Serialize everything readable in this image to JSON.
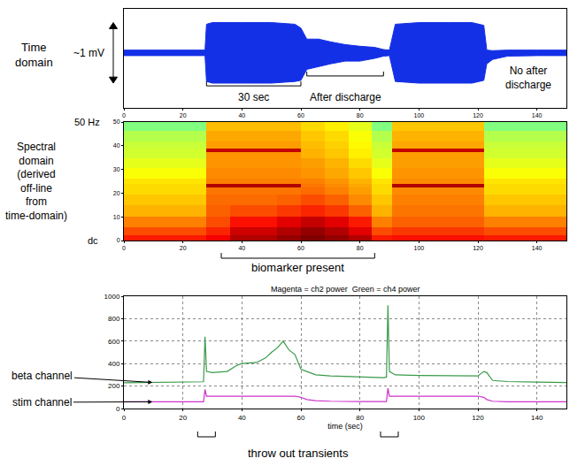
{
  "chart_data": [
    {
      "type": "area",
      "color": "#1430e6",
      "x": [
        0,
        10,
        20,
        27.5,
        28,
        30,
        40,
        50,
        58,
        60,
        62,
        66,
        70,
        75,
        80,
        85,
        88,
        90,
        92,
        100,
        110,
        118,
        122,
        123,
        125,
        130,
        140,
        150
      ],
      "values": [
        [
          -0.05,
          0.05
        ],
        [
          -0.05,
          0.05
        ],
        [
          -0.05,
          0.05
        ],
        [
          -0.05,
          0.05
        ],
        [
          -0.52,
          0.52
        ],
        [
          -0.55,
          0.55
        ],
        [
          -0.55,
          0.55
        ],
        [
          -0.55,
          0.55
        ],
        [
          -0.52,
          0.52
        ],
        [
          -0.5,
          0.45
        ],
        [
          -0.3,
          0.25
        ],
        [
          -0.25,
          0.25
        ],
        [
          -0.2,
          0.2
        ],
        [
          -0.15,
          0.15
        ],
        [
          -0.15,
          0.12
        ],
        [
          -0.1,
          0.1
        ],
        [
          -0.06,
          0.06
        ],
        [
          -0.05,
          0.05
        ],
        [
          -0.52,
          0.52
        ],
        [
          -0.55,
          0.55
        ],
        [
          -0.55,
          0.55
        ],
        [
          -0.55,
          0.55
        ],
        [
          -0.5,
          0.5
        ],
        [
          -0.2,
          0.05
        ],
        [
          -0.12,
          0.04
        ],
        [
          -0.06,
          0.05
        ],
        [
          -0.05,
          0.05
        ],
        [
          -0.05,
          0.05
        ]
      ],
      "xlim": [
        0,
        150
      ],
      "ylim": [
        -1,
        0.8
      ],
      "xticks": [
        0,
        20,
        40,
        60,
        80,
        100,
        120,
        140
      ],
      "tick_labels": "x",
      "annotations": [
        "Time domain",
        "~1 mV",
        "30 sec",
        "After discharge",
        "No after discharge"
      ]
    },
    {
      "type": "heatmap",
      "x": [
        5,
        15,
        24,
        32,
        40,
        48,
        56,
        64,
        72,
        80.5,
        87.5,
        94,
        102,
        110,
        118,
        126,
        135,
        145
      ],
      "y": [
        1,
        3.5,
        7.5,
        12.5,
        17.5,
        21.5,
        23,
        24.5,
        28,
        33,
        36.5,
        38,
        39.5,
        44,
        48.5
      ],
      "values": [
        [
          0.85,
          0.85,
          0.85,
          0.88,
          0.95,
          0.95,
          0.98,
          1.0,
          0.98,
          0.95,
          0.85,
          0.86,
          0.86,
          0.86,
          0.86,
          0.85,
          0.85,
          0.85
        ],
        [
          0.8,
          0.8,
          0.8,
          0.84,
          0.92,
          0.92,
          0.95,
          0.98,
          0.95,
          0.9,
          0.8,
          0.82,
          0.82,
          0.82,
          0.82,
          0.8,
          0.8,
          0.8
        ],
        [
          0.75,
          0.75,
          0.75,
          0.8,
          0.86,
          0.86,
          0.9,
          0.93,
          0.9,
          0.85,
          0.75,
          0.78,
          0.78,
          0.78,
          0.78,
          0.75,
          0.75,
          0.75
        ],
        [
          0.7,
          0.7,
          0.7,
          0.78,
          0.8,
          0.8,
          0.82,
          0.84,
          0.82,
          0.78,
          0.7,
          0.76,
          0.76,
          0.76,
          0.76,
          0.7,
          0.7,
          0.7
        ],
        [
          0.68,
          0.68,
          0.68,
          0.77,
          0.77,
          0.77,
          0.78,
          0.8,
          0.78,
          0.74,
          0.68,
          0.75,
          0.75,
          0.75,
          0.75,
          0.68,
          0.68,
          0.68
        ],
        [
          0.66,
          0.66,
          0.66,
          0.76,
          0.76,
          0.76,
          0.76,
          0.77,
          0.75,
          0.72,
          0.66,
          0.74,
          0.74,
          0.74,
          0.74,
          0.66,
          0.66,
          0.66
        ],
        [
          0.66,
          0.66,
          0.66,
          0.95,
          0.95,
          0.95,
          0.95,
          0.76,
          0.74,
          0.71,
          0.66,
          0.95,
          0.95,
          0.95,
          0.95,
          0.66,
          0.66,
          0.66
        ],
        [
          0.65,
          0.65,
          0.65,
          0.75,
          0.75,
          0.75,
          0.75,
          0.75,
          0.73,
          0.7,
          0.65,
          0.74,
          0.74,
          0.74,
          0.74,
          0.65,
          0.65,
          0.65
        ],
        [
          0.62,
          0.62,
          0.62,
          0.74,
          0.74,
          0.74,
          0.74,
          0.73,
          0.71,
          0.68,
          0.62,
          0.73,
          0.73,
          0.73,
          0.73,
          0.62,
          0.62,
          0.62
        ],
        [
          0.6,
          0.6,
          0.6,
          0.73,
          0.73,
          0.73,
          0.73,
          0.72,
          0.7,
          0.66,
          0.6,
          0.72,
          0.72,
          0.72,
          0.72,
          0.6,
          0.6,
          0.6
        ],
        [
          0.58,
          0.58,
          0.58,
          0.73,
          0.73,
          0.73,
          0.73,
          0.7,
          0.68,
          0.64,
          0.58,
          0.72,
          0.72,
          0.72,
          0.72,
          0.58,
          0.58,
          0.58
        ],
        [
          0.58,
          0.58,
          0.58,
          0.93,
          0.93,
          0.93,
          0.93,
          0.7,
          0.68,
          0.64,
          0.58,
          0.93,
          0.93,
          0.93,
          0.93,
          0.58,
          0.58,
          0.58
        ],
        [
          0.57,
          0.57,
          0.57,
          0.72,
          0.72,
          0.72,
          0.72,
          0.69,
          0.67,
          0.63,
          0.57,
          0.71,
          0.71,
          0.71,
          0.71,
          0.57,
          0.57,
          0.57
        ],
        [
          0.55,
          0.55,
          0.55,
          0.71,
          0.71,
          0.71,
          0.71,
          0.68,
          0.66,
          0.62,
          0.55,
          0.7,
          0.7,
          0.7,
          0.7,
          0.55,
          0.55,
          0.55
        ],
        [
          0.5,
          0.5,
          0.5,
          0.69,
          0.69,
          0.69,
          0.69,
          0.66,
          0.64,
          0.6,
          0.5,
          0.68,
          0.68,
          0.68,
          0.68,
          0.5,
          0.5,
          0.5
        ]
      ],
      "zlim": [
        0,
        1
      ],
      "xlim": [
        0,
        150
      ],
      "ylim": [
        0,
        50
      ],
      "xticks": [
        0,
        20,
        40,
        60,
        80,
        100,
        120,
        140
      ],
      "yticks": [
        0,
        10,
        20,
        30,
        40,
        50
      ],
      "annotations": [
        "Spectral domain (derived off-line from time-domain)",
        "50 Hz",
        "dc",
        "biomarker present"
      ]
    },
    {
      "type": "line",
      "title": "Magenta = ch2 power  Green = ch4 power",
      "x_label": "time (sec)",
      "x": [
        0,
        10,
        20,
        27,
        27.5,
        28,
        30,
        35,
        38,
        40,
        45,
        48,
        50,
        52,
        54,
        56,
        58,
        60,
        62,
        65,
        70,
        80,
        88,
        89,
        89.5,
        90,
        92,
        100,
        110,
        120,
        122,
        123,
        125,
        130,
        140,
        150
      ],
      "series": [
        {
          "name": "ch4 power",
          "color": "#3a9a4a",
          "values": [
            230,
            232,
            235,
            238,
            640,
            330,
            320,
            330,
            380,
            400,
            410,
            450,
            500,
            540,
            600,
            520,
            480,
            350,
            330,
            300,
            290,
            280,
            275,
            280,
            920,
            330,
            300,
            295,
            290,
            290,
            330,
            320,
            250,
            240,
            235,
            232
          ]
        },
        {
          "name": "ch2 power",
          "color": "#cc33cc",
          "values": [
            60,
            60,
            60,
            60,
            170,
            110,
            110,
            110,
            110,
            110,
            110,
            110,
            110,
            110,
            110,
            110,
            110,
            100,
            80,
            70,
            65,
            62,
            60,
            62,
            180,
            110,
            110,
            110,
            110,
            110,
            100,
            80,
            65,
            60,
            60,
            60
          ]
        }
      ],
      "xlim": [
        0,
        150
      ],
      "ylim": [
        0,
        1000
      ],
      "xticks": [
        0,
        20,
        40,
        60,
        80,
        100,
        120,
        140
      ],
      "yticks": [
        0,
        200,
        400,
        600,
        800,
        1000
      ],
      "grid": true,
      "annotations": [
        "beta channel",
        "stim channel",
        "throw out transients"
      ]
    }
  ]
}
